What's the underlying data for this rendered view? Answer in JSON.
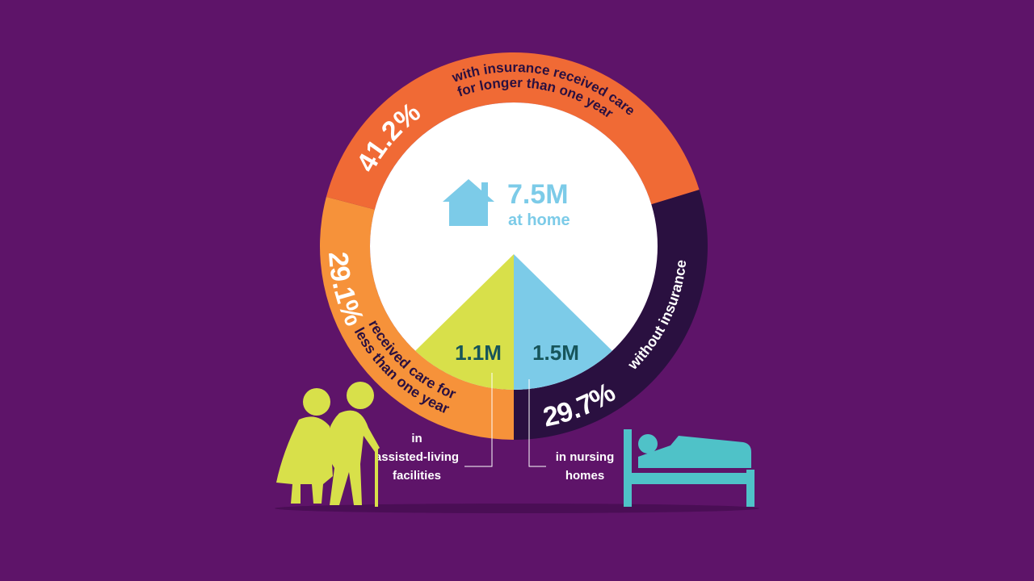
{
  "ring": [
    {
      "value": 29.1,
      "label": "29.1%",
      "lines": [
        "received care for",
        "less than one year"
      ],
      "color": "#f6923a"
    },
    {
      "value": 41.2,
      "label": "41.2%",
      "lines": [
        "with insurance received care",
        "for longer than one year"
      ],
      "color": "#f06a35"
    },
    {
      "value": 29.7,
      "label": "29.7%",
      "lines": [
        "without insurance"
      ],
      "color": "#2a1040"
    }
  ],
  "center": {
    "value": "7.5M",
    "caption": "at home"
  },
  "split": [
    {
      "value": "1.1M",
      "caption": [
        "in",
        "assisted-living",
        "facilities"
      ],
      "color": "#d8e04a"
    },
    {
      "value": "1.5M",
      "caption": [
        "in nursing",
        "homes"
      ],
      "color": "#7ccbe8"
    }
  ]
}
